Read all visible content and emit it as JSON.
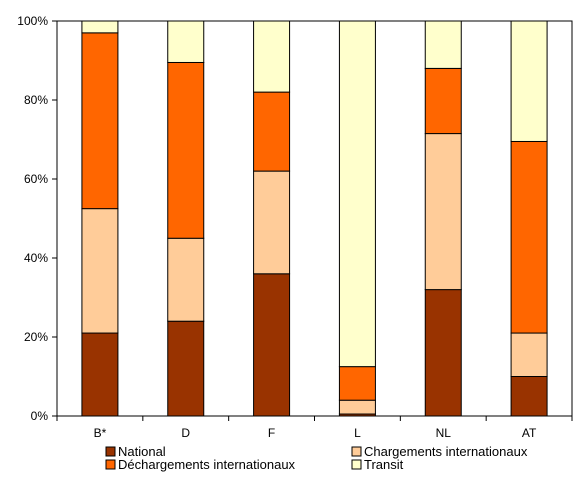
{
  "chart_data": {
    "type": "bar",
    "stacked": true,
    "percent": true,
    "categories": [
      "B*",
      "D",
      "F",
      "L",
      "NL",
      "AT"
    ],
    "series": [
      {
        "name": "National",
        "color": "#993300",
        "values": [
          21,
          24,
          36,
          0.5,
          32,
          10
        ]
      },
      {
        "name": "Chargements internationaux",
        "color": "#FFCC99",
        "values": [
          31.5,
          21,
          26,
          3.5,
          39.5,
          11
        ]
      },
      {
        "name": "Déchargements internationaux",
        "color": "#FF6600",
        "values": [
          44.5,
          44.5,
          20,
          8.5,
          16.5,
          48.5
        ]
      },
      {
        "name": "Transit",
        "color": "#FFFFCC",
        "values": [
          3,
          10.5,
          18,
          87.5,
          12,
          30.5
        ]
      }
    ],
    "ylim": [
      0,
      100
    ],
    "yticks": [
      "0%",
      "20%",
      "40%",
      "60%",
      "80%",
      "100%"
    ],
    "grid": false,
    "legend": "bottom"
  }
}
